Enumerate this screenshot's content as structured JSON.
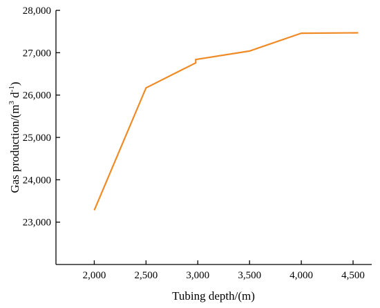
{
  "chart_data": {
    "type": "line",
    "xlabel": "Tubing depth/(m)",
    "ylabel": {
      "prefix": "Gas production/(m",
      "sup1": "3",
      "mid": " d",
      "sup2": "-1",
      "suffix": ")"
    },
    "xlim": [
      1630,
      4680
    ],
    "ylim": [
      22000,
      28000
    ],
    "x_ticks": [
      2000,
      2500,
      3000,
      3500,
      4000,
      4500
    ],
    "x_tick_labels": [
      "2,000",
      "2,500",
      "3,000",
      "3,500",
      "4,000",
      "4,500"
    ],
    "y_ticks": [
      23000,
      24000,
      25000,
      26000,
      27000,
      28000
    ],
    "y_tick_labels": [
      "23,000",
      "24,000",
      "25,000",
      "26,000",
      "27,000",
      "28,000"
    ],
    "grid": false,
    "series": [
      {
        "color": "#f08a24",
        "x": [
          2000,
          2500,
          2980,
          2980,
          3500,
          4000,
          4550
        ],
        "y": [
          23280,
          26170,
          26760,
          26840,
          27040,
          27460,
          27470
        ]
      }
    ]
  }
}
